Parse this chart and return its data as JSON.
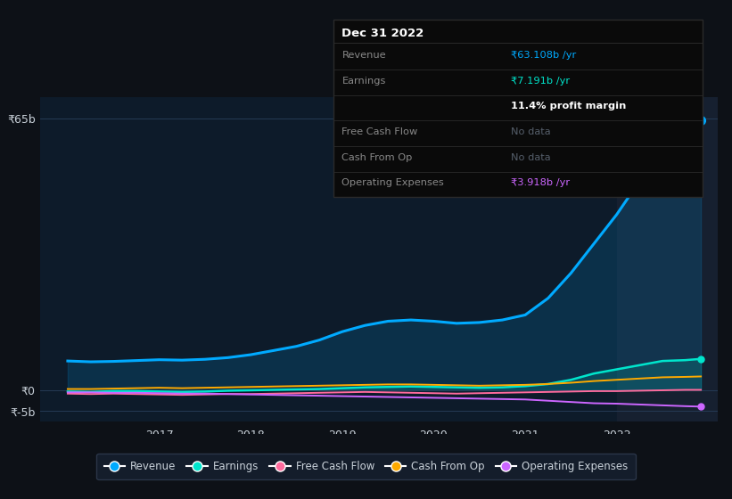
{
  "bg_color": "#0d1117",
  "plot_bg_color": "#0d1b2a",
  "grid_color": "#253a55",
  "text_color": "#c9d1d9",
  "years_x": [
    2016.0,
    2016.25,
    2016.5,
    2016.75,
    2017.0,
    2017.25,
    2017.5,
    2017.75,
    2018.0,
    2018.25,
    2018.5,
    2018.75,
    2019.0,
    2019.25,
    2019.5,
    2019.75,
    2020.0,
    2020.25,
    2020.5,
    2020.75,
    2021.0,
    2021.25,
    2021.5,
    2021.75,
    2022.0,
    2022.25,
    2022.5,
    2022.75,
    2022.92
  ],
  "revenue": [
    7.0,
    6.8,
    6.9,
    7.1,
    7.3,
    7.2,
    7.4,
    7.8,
    8.5,
    9.5,
    10.5,
    12.0,
    14.0,
    15.5,
    16.5,
    16.8,
    16.5,
    16.0,
    16.2,
    16.8,
    18.0,
    22.0,
    28.0,
    35.0,
    42.0,
    50.0,
    58.0,
    63.0,
    64.5
  ],
  "earnings": [
    -0.3,
    -0.4,
    -0.2,
    -0.2,
    -0.3,
    -0.4,
    -0.3,
    -0.1,
    0.0,
    0.1,
    0.2,
    0.3,
    0.5,
    0.7,
    0.8,
    0.9,
    0.8,
    0.7,
    0.6,
    0.7,
    1.0,
    1.5,
    2.5,
    4.0,
    5.0,
    6.0,
    7.0,
    7.2,
    7.5
  ],
  "free_cash_flow": [
    -0.8,
    -0.9,
    -0.8,
    -0.9,
    -1.0,
    -1.1,
    -1.0,
    -0.9,
    -0.9,
    -0.8,
    -0.7,
    -0.6,
    -0.5,
    -0.4,
    -0.5,
    -0.6,
    -0.7,
    -0.8,
    -0.7,
    -0.6,
    -0.5,
    -0.4,
    -0.3,
    -0.2,
    -0.2,
    -0.1,
    0.0,
    0.1,
    0.1
  ],
  "cash_from_op": [
    0.3,
    0.3,
    0.4,
    0.5,
    0.6,
    0.5,
    0.6,
    0.7,
    0.8,
    0.9,
    1.0,
    1.1,
    1.2,
    1.3,
    1.4,
    1.4,
    1.3,
    1.2,
    1.1,
    1.2,
    1.3,
    1.5,
    1.8,
    2.2,
    2.5,
    2.8,
    3.1,
    3.2,
    3.3
  ],
  "operating_expenses": [
    -0.5,
    -0.5,
    -0.6,
    -0.6,
    -0.7,
    -0.8,
    -0.8,
    -0.9,
    -1.0,
    -1.1,
    -1.2,
    -1.3,
    -1.4,
    -1.5,
    -1.6,
    -1.7,
    -1.8,
    -1.9,
    -2.0,
    -2.1,
    -2.2,
    -2.5,
    -2.8,
    -3.1,
    -3.2,
    -3.4,
    -3.6,
    -3.8,
    -3.9
  ],
  "ytick_vals": [
    -5,
    0,
    65
  ],
  "ytick_labels": [
    "₹-5b",
    "₹0",
    "₹65b"
  ],
  "xtick_years": [
    2017,
    2018,
    2019,
    2020,
    2021,
    2022
  ],
  "xlim": [
    2015.7,
    2023.1
  ],
  "ylim": [
    -7.5,
    70
  ],
  "revenue_color": "#00aaff",
  "earnings_color": "#00e5cc",
  "free_cash_flow_color": "#ff6b9d",
  "cash_from_op_color": "#ffaa00",
  "operating_expenses_color": "#cc66ff",
  "highlight_x_start": 2022.0,
  "info_box": {
    "title": "Dec 31 2022",
    "rows": [
      {
        "label": "Revenue",
        "value": "₹63.108b /yr",
        "value_color": "#00aaff",
        "bold_value": false
      },
      {
        "label": "Earnings",
        "value": "₹7.191b /yr",
        "value_color": "#00e5cc",
        "bold_value": false
      },
      {
        "label": "",
        "value": "11.4% profit margin",
        "value_color": "#ffffff",
        "bold_value": true
      },
      {
        "label": "Free Cash Flow",
        "value": "No data",
        "value_color": "#555e6a",
        "bold_value": false
      },
      {
        "label": "Cash From Op",
        "value": "No data",
        "value_color": "#555e6a",
        "bold_value": false
      },
      {
        "label": "Operating Expenses",
        "value": "₹3.918b /yr",
        "value_color": "#cc66ff",
        "bold_value": false
      }
    ],
    "bg_color": "#0a0a0a",
    "border_color": "#2a2a2a",
    "label_color": "#888888",
    "title_color": "#ffffff"
  },
  "legend_items": [
    {
      "label": "Revenue",
      "color": "#00aaff"
    },
    {
      "label": "Earnings",
      "color": "#00e5cc"
    },
    {
      "label": "Free Cash Flow",
      "color": "#ff6b9d"
    },
    {
      "label": "Cash From Op",
      "color": "#ffaa00"
    },
    {
      "label": "Operating Expenses",
      "color": "#cc66ff"
    }
  ]
}
